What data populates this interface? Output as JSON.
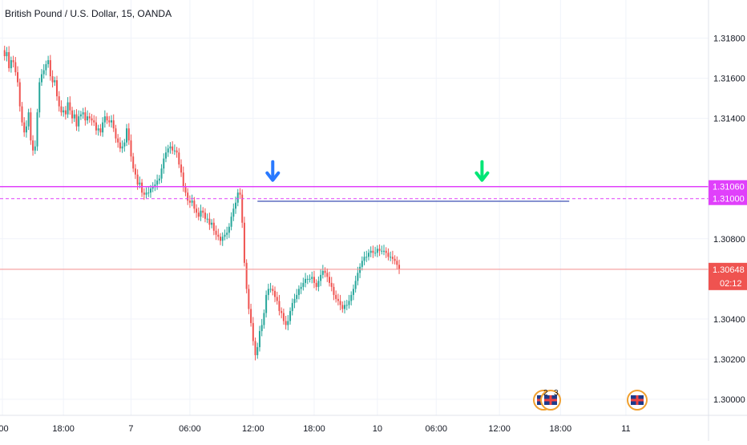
{
  "title": "British Pound / U.S. Dollar, 15, OANDA",
  "colors": {
    "up": "#26a69a",
    "down": "#ef5350",
    "grid": "#f0f3fa",
    "resistance": "#e040fb",
    "level": "#3f51b5",
    "arrow_blue": "#2979ff",
    "arrow_green": "#00e676",
    "price_line": "#f48f8f",
    "price_tag": "#ef5350"
  },
  "chart_data": {
    "type": "candlestick",
    "symbol": "GBP/USD",
    "timeframe": "15",
    "source": "OANDA",
    "ylim": [
      1.2996,
      1.3195
    ],
    "y_ticks": [
      1.3,
      1.302,
      1.304,
      1.308,
      1.314,
      1.316,
      1.318
    ],
    "y_tick_labels": [
      "1.30000",
      "1.30200",
      "1.30400",
      "1.30800",
      "1.31400",
      "1.31600",
      "1.31800"
    ],
    "x_ticks": [
      ":00",
      "18:00",
      "7",
      "06:00",
      "12:00",
      "18:00",
      "10",
      "06:00",
      "12:00",
      "18:00",
      "11"
    ],
    "x_tick_index": [
      0,
      28,
      59,
      86,
      115,
      143,
      172,
      199,
      228,
      256,
      286
    ],
    "bars_per_day": 96,
    "close_series": [
      1.3174,
      1.3171,
      1.3173,
      1.3165,
      1.3169,
      1.3168,
      1.3163,
      1.3158,
      1.3146,
      1.3138,
      1.3133,
      1.3136,
      1.3143,
      1.3129,
      1.3124,
      1.3126,
      1.3143,
      1.3158,
      1.3162,
      1.3164,
      1.3167,
      1.3169,
      1.3161,
      1.3158,
      1.3159,
      1.3151,
      1.3146,
      1.3143,
      1.3144,
      1.3142,
      1.3148,
      1.3144,
      1.314,
      1.3142,
      1.3136,
      1.3141,
      1.3142,
      1.3143,
      1.3139,
      1.3141,
      1.314,
      1.3139,
      1.3138,
      1.3134,
      1.3135,
      1.3133,
      1.3138,
      1.3141,
      1.3139,
      1.3138,
      1.3139,
      1.3135,
      1.313,
      1.3128,
      1.3125,
      1.3126,
      1.3128,
      1.3135,
      1.3129,
      1.3121,
      1.3115,
      1.3112,
      1.3107,
      1.3108,
      1.3103,
      1.3102,
      1.3103,
      1.3103,
      1.3105,
      1.3106,
      1.3107,
      1.3109,
      1.311,
      1.3115,
      1.312,
      1.3123,
      1.3125,
      1.3126,
      1.3124,
      1.3124,
      1.3123,
      1.3117,
      1.3113,
      1.3106,
      1.3103,
      1.3099,
      1.3098,
      1.3099,
      1.3095,
      1.3093,
      1.3091,
      1.3094,
      1.3093,
      1.309,
      1.309,
      1.3087,
      1.3088,
      1.3084,
      1.3082,
      1.3081,
      1.3079,
      1.3081,
      1.3082,
      1.3083,
      1.3086,
      1.3091,
      1.3095,
      1.3098,
      1.3103,
      1.3102,
      1.3088,
      1.3068,
      1.3055,
      1.3045,
      1.3038,
      1.3029,
      1.3022,
      1.3026,
      1.3034,
      1.3037,
      1.3043,
      1.3052,
      1.3055,
      1.3055,
      1.3054,
      1.3051,
      1.3049,
      1.3044,
      1.3043,
      1.3039,
      1.3037,
      1.3039,
      1.3044,
      1.3048,
      1.305,
      1.3052,
      1.3055,
      1.3056,
      1.3058,
      1.306,
      1.306,
      1.306,
      1.3061,
      1.3058,
      1.3056,
      1.3059,
      1.3062,
      1.3064,
      1.3063,
      1.3061,
      1.3058,
      1.3056,
      1.3052,
      1.305,
      1.3049,
      1.3047,
      1.3045,
      1.3047,
      1.3047,
      1.3049,
      1.3052,
      1.3055,
      1.3059,
      1.3063,
      1.3066,
      1.3069,
      1.3071,
      1.3071,
      1.3073,
      1.3074,
      1.3073,
      1.3073,
      1.3075,
      1.3074,
      1.3074,
      1.3074,
      1.3073,
      1.3071,
      1.3071,
      1.307,
      1.3069,
      1.3067,
      1.3065
    ],
    "levels": [
      {
        "price": 1.3106,
        "label": "1.31060",
        "style": "solid"
      },
      {
        "price": 1.31,
        "label": "1.31000",
        "style": "dashed"
      },
      {
        "price": 1.30648,
        "label": "1.30648"
      }
    ],
    "countdown": "02:12",
    "markers": [
      "2",
      "3"
    ]
  }
}
